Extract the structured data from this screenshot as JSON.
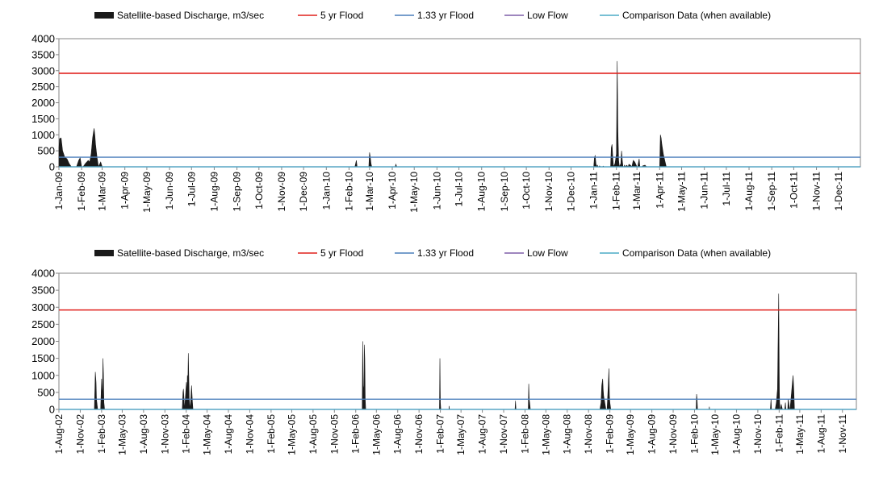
{
  "colors": {
    "discharge": "#1a1a1a",
    "flood5": "#e0201b",
    "flood133": "#4a7ebb",
    "lowflow": "#7f5fa8",
    "comparison": "#4bacc6",
    "axis": "#868686"
  },
  "chart_data": [
    {
      "type": "area",
      "legend": [
        {
          "key": "discharge",
          "label": "Satellite-based Discharge, m3/sec",
          "marker": "area"
        },
        {
          "key": "flood5",
          "label": "5 yr Flood",
          "marker": "line"
        },
        {
          "key": "flood133",
          "label": "1.33 yr Flood",
          "marker": "line"
        },
        {
          "key": "lowflow",
          "label": "Low Flow",
          "marker": "line"
        },
        {
          "key": "comparison",
          "label": "Comparison Data (when available)",
          "marker": "line"
        }
      ],
      "legend_position": "top",
      "ylim": [
        0,
        4000
      ],
      "yticks": [
        "0",
        "500",
        "1000",
        "1500",
        "2000",
        "2500",
        "3000",
        "3500",
        "4000"
      ],
      "xlim": [
        "1-Jan-09",
        "31-Dec-11"
      ],
      "xticks": [
        "1-Jan-09",
        "1-Feb-09",
        "1-Mar-09",
        "1-Apr-09",
        "1-May-09",
        "1-Jun-09",
        "1-Jul-09",
        "1-Aug-09",
        "1-Sep-09",
        "1-Oct-09",
        "1-Nov-09",
        "1-Dec-09",
        "1-Jan-10",
        "1-Feb-10",
        "1-Mar-10",
        "1-Apr-10",
        "1-May-10",
        "1-Jun-10",
        "1-Jul-10",
        "1-Aug-10",
        "1-Sep-10",
        "1-Oct-10",
        "1-Nov-10",
        "1-Dec-10",
        "1-Jan-11",
        "1-Feb-11",
        "1-Mar-11",
        "1-Apr-11",
        "1-May-11",
        "1-Jun-11",
        "1-Jul-11",
        "1-Aug-11",
        "1-Sep-11",
        "1-Oct-11",
        "1-Nov-11",
        "1-Dec-11"
      ],
      "grid": false,
      "reference_lines": {
        "flood5": 2920,
        "flood133": 300,
        "lowflow": 0,
        "comparison": 0
      },
      "series": [
        {
          "key": "discharge",
          "x": [
            "1-Jan-09",
            "2-Jan-09",
            "4-Jan-09",
            "6-Jan-09",
            "9-Jan-09",
            "12-Jan-09",
            "15-Jan-09",
            "18-Jan-09",
            "20-Jan-09",
            "25-Jan-09",
            "28-Jan-09",
            "30-Jan-09",
            "1-Feb-09",
            "3-Feb-09",
            "6-Feb-09",
            "10-Feb-09",
            "12-Feb-09",
            "14-Feb-09",
            "16-Feb-09",
            "18-Feb-09",
            "19-Feb-09",
            "20-Feb-09",
            "22-Feb-09",
            "24-Feb-09",
            "26-Feb-09",
            "27-Feb-09",
            "1-Mar-09",
            "3-Mar-09",
            "5-Mar-09",
            "7-Mar-09",
            "8-Mar-09",
            "9-Feb-10",
            "10-Feb-10",
            "11-Feb-10",
            "12-Feb-10",
            "28-Feb-10",
            "1-Mar-10",
            "2-Mar-10",
            "3-Mar-10",
            "4-Mar-10",
            "5-Mar-10",
            "6-Mar-10",
            "7-Mar-10",
            "8-Mar-10",
            "5-Apr-10",
            "6-Apr-10",
            "7-Apr-10",
            "1-Jan-11",
            "2-Jan-11",
            "3-Jan-11",
            "4-Jan-11",
            "5-Jan-11",
            "6-Jan-11",
            "7-Jan-11",
            "8-Jan-11",
            "9-Jan-11",
            "10-Jan-11",
            "13-Jan-11",
            "14-Jan-11",
            "15-Jan-11",
            "24-Jan-11",
            "25-Jan-11",
            "26-Jan-11",
            "27-Jan-11",
            "28-Jan-11",
            "30-Jan-11",
            "1-Feb-11",
            "2-Feb-11",
            "3-Feb-11",
            "4-Feb-11",
            "5-Feb-11",
            "6-Feb-11",
            "7-Feb-11",
            "8-Feb-11",
            "9-Feb-11",
            "10-Feb-11",
            "11-Feb-11",
            "12-Feb-11",
            "13-Feb-11",
            "15-Feb-11",
            "17-Feb-11",
            "18-Feb-11",
            "20-Feb-11",
            "22-Feb-11",
            "24-Feb-11",
            "26-Feb-11",
            "1-Mar-11",
            "2-Mar-11",
            "4-Mar-11",
            "5-Mar-11",
            "8-Mar-11",
            "9-Mar-11",
            "12-Mar-11",
            "14-Mar-11",
            "15-Mar-11",
            "1-Apr-11",
            "2-Apr-11",
            "3-Apr-11",
            "4-Apr-11",
            "6-Apr-11",
            "8-Apr-11",
            "10-Apr-11",
            "12-Apr-11",
            "13-Apr-11",
            "31-Dec-11"
          ],
          "values": [
            600,
            880,
            900,
            500,
            300,
            250,
            100,
            0,
            0,
            0,
            200,
            280,
            0,
            0,
            100,
            200,
            150,
            400,
            900,
            1200,
            1000,
            700,
            300,
            0,
            100,
            150,
            0,
            0,
            0,
            0,
            0,
            0,
            100,
            200,
            0,
            0,
            450,
            300,
            100,
            0,
            0,
            0,
            0,
            0,
            0,
            80,
            0,
            0,
            300,
            350,
            100,
            0,
            50,
            0,
            0,
            30,
            0,
            0,
            20,
            0,
            0,
            600,
            700,
            300,
            0,
            100,
            400,
            3300,
            1100,
            200,
            0,
            50,
            100,
            500,
            200,
            0,
            0,
            50,
            0,
            50,
            0,
            80,
            50,
            0,
            200,
            150,
            0,
            0,
            250,
            0,
            0,
            30,
            50,
            0,
            0,
            0,
            1000,
            900,
            700,
            400,
            200,
            0,
            0,
            0,
            0
          ]
        }
      ]
    },
    {
      "type": "area",
      "legend": [
        {
          "key": "discharge",
          "label": "Satellite-based Discharge, m3/sec",
          "marker": "area"
        },
        {
          "key": "flood5",
          "label": "5 yr Flood",
          "marker": "line"
        },
        {
          "key": "flood133",
          "label": "1.33 yr Flood",
          "marker": "line"
        },
        {
          "key": "lowflow",
          "label": "Low Flow",
          "marker": "line"
        },
        {
          "key": "comparison",
          "label": "Comparison Data (when available)",
          "marker": "line"
        }
      ],
      "legend_position": "top",
      "ylim": [
        0,
        4000
      ],
      "yticks": [
        "0",
        "500",
        "1000",
        "1500",
        "2000",
        "2500",
        "3000",
        "3500",
        "4000"
      ],
      "xlim": [
        "1-Aug-02",
        "31-Dec-11"
      ],
      "xticks": [
        "1-Aug-02",
        "1-Nov-02",
        "1-Feb-03",
        "1-May-03",
        "1-Aug-03",
        "1-Nov-03",
        "1-Feb-04",
        "1-May-04",
        "1-Aug-04",
        "1-Nov-04",
        "1-Feb-05",
        "1-May-05",
        "1-Aug-05",
        "1-Nov-05",
        "1-Feb-06",
        "1-May-06",
        "1-Aug-06",
        "1-Nov-06",
        "1-Feb-07",
        "1-May-07",
        "1-Aug-07",
        "1-Nov-07",
        "1-Feb-08",
        "1-May-08",
        "1-Aug-08",
        "1-Nov-08",
        "1-Feb-09",
        "1-May-09",
        "1-Aug-09",
        "1-Nov-09",
        "1-Feb-10",
        "1-May-10",
        "1-Aug-10",
        "1-Nov-10",
        "1-Feb-11",
        "1-May-11",
        "1-Aug-11",
        "1-Nov-11"
      ],
      "grid": false,
      "reference_lines": {
        "flood5": 2920,
        "flood133": 300,
        "lowflow": 0,
        "comparison": 0
      },
      "series": [
        {
          "key": "discharge",
          "x": [
            "1-Jan-03",
            "5-Jan-03",
            "8-Jan-03",
            "10-Jan-03",
            "15-Jan-03",
            "28-Jan-03",
            "1-Feb-03",
            "3-Feb-03",
            "5-Feb-03",
            "7-Feb-03",
            "9-Feb-03",
            "11-Feb-03",
            "14-Feb-03",
            "17-Feb-03",
            "22-Feb-03",
            "15-Jan-04",
            "18-Jan-04",
            "20-Jan-04",
            "25-Jan-04",
            "2-Feb-04",
            "4-Feb-04",
            "6-Feb-04",
            "8-Feb-04",
            "10-Feb-04",
            "14-Feb-04",
            "18-Feb-04",
            "20-Feb-04",
            "24-Feb-04",
            "27-Feb-04",
            "1-Mar-04",
            "3-Mar-04",
            "1-Mar-06",
            "3-Mar-06",
            "5-Mar-06",
            "8-Mar-06",
            "10-Mar-06",
            "12-Mar-06",
            "14-Mar-06",
            "16-Mar-06",
            "20-Mar-06",
            "28-Jan-07",
            "30-Jan-07",
            "1-Feb-07",
            "3-Feb-07",
            "10-Mar-07",
            "11-Mar-07",
            "12-Mar-07",
            "20-Dec-07",
            "22-Dec-07",
            "24-Dec-07",
            "15-Feb-08",
            "17-Feb-08",
            "19-Feb-08",
            "21-Feb-08",
            "24-Feb-08",
            "20-Dec-08",
            "25-Dec-08",
            "28-Dec-08",
            "1-Jan-09",
            "3-Jan-09",
            "5-Jan-09",
            "10-Jan-09",
            "15-Jan-09",
            "20-Jan-09",
            "25-Jan-09",
            "28-Jan-09",
            "30-Jan-09",
            "1-Feb-09",
            "3-Feb-09",
            "5-Feb-09",
            "9-Feb-09",
            "12-Feb-09",
            "20-Feb-09",
            "22-Feb-09",
            "26-Feb-09",
            "28-Feb-09",
            "2-Mar-09",
            "6-Mar-09",
            "8-Feb-10",
            "10-Feb-10",
            "12-Feb-10",
            "14-Feb-10",
            "5-Apr-10",
            "6-Apr-10",
            "7-Apr-10",
            "25-Dec-10",
            "28-Dec-10",
            "30-Dec-10",
            "15-Jan-11",
            "20-Jan-11",
            "25-Jan-11",
            "30-Jan-11",
            "1-Feb-11",
            "2-Feb-11",
            "3-Feb-11",
            "5-Feb-11",
            "7-Feb-11",
            "10-Feb-11",
            "15-Feb-11",
            "25-Feb-11",
            "28-Feb-11",
            "2-Mar-11",
            "10-Mar-11",
            "12-Mar-11",
            "18-Mar-11",
            "20-Mar-11",
            "2-Apr-11",
            "5-Apr-11",
            "8-Apr-11",
            "12-Apr-11",
            "16-Apr-11",
            "31-Dec-11"
          ],
          "values": [
            0,
            1100,
            800,
            300,
            0,
            0,
            900,
            400,
            600,
            1500,
            1000,
            200,
            0,
            0,
            0,
            0,
            500,
            600,
            0,
            800,
            400,
            1000,
            700,
            1650,
            300,
            0,
            200,
            700,
            300,
            0,
            0,
            0,
            2000,
            700,
            500,
            1900,
            1500,
            300,
            0,
            0,
            0,
            1500,
            200,
            0,
            0,
            100,
            0,
            0,
            250,
            0,
            0,
            750,
            300,
            200,
            0,
            0,
            200,
            700,
            900,
            600,
            400,
            200,
            0,
            0,
            700,
            1200,
            400,
            200,
            100,
            0,
            0,
            0,
            0,
            0,
            0,
            0,
            0,
            0,
            0,
            450,
            300,
            0,
            0,
            80,
            0,
            0,
            300,
            0,
            0,
            200,
            600,
            3400,
            1500,
            500,
            200,
            0,
            0,
            150,
            0,
            0,
            200,
            0,
            0,
            300,
            0,
            0,
            1000,
            600,
            0,
            0,
            0,
            0
          ]
        }
      ]
    }
  ]
}
